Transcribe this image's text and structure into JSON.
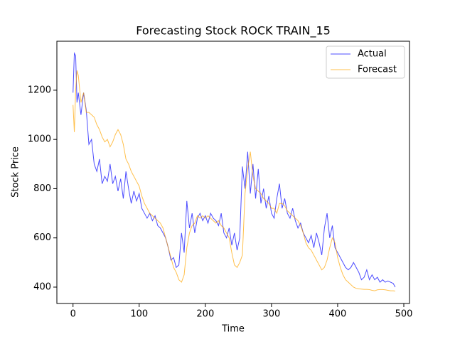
{
  "chart_data": {
    "type": "line",
    "title": "Forecasting Stock ROCK TRAIN_15",
    "x_label": "Time",
    "y_label": "Stock Price",
    "x": [
      0,
      2,
      4,
      6,
      8,
      12,
      16,
      20,
      24,
      28,
      32,
      36,
      40,
      44,
      48,
      52,
      56,
      60,
      64,
      68,
      72,
      76,
      80,
      84,
      88,
      92,
      96,
      100,
      104,
      108,
      112,
      116,
      120,
      124,
      128,
      132,
      136,
      140,
      144,
      148,
      152,
      156,
      160,
      164,
      168,
      172,
      176,
      180,
      184,
      188,
      192,
      196,
      200,
      204,
      208,
      212,
      216,
      220,
      224,
      228,
      232,
      236,
      240,
      244,
      248,
      252,
      256,
      260,
      264,
      268,
      272,
      276,
      280,
      284,
      288,
      292,
      296,
      300,
      304,
      308,
      312,
      316,
      320,
      324,
      328,
      332,
      336,
      340,
      344,
      348,
      352,
      356,
      360,
      364,
      368,
      372,
      376,
      380,
      384,
      388,
      392,
      396,
      400,
      404,
      408,
      412,
      416,
      420,
      424,
      428,
      432,
      436,
      440,
      444,
      448,
      452,
      456,
      460,
      464,
      468,
      472,
      476,
      480,
      484,
      487
    ],
    "series": [
      {
        "name": "Actual",
        "color": "#0000ff",
        "values": [
          1190,
          1350,
          1340,
          1150,
          1190,
          1100,
          1190,
          1120,
          980,
          1000,
          900,
          870,
          920,
          820,
          850,
          830,
          900,
          820,
          850,
          790,
          840,
          760,
          870,
          800,
          740,
          790,
          750,
          780,
          720,
          700,
          680,
          700,
          670,
          690,
          650,
          640,
          620,
          600,
          560,
          510,
          520,
          480,
          490,
          620,
          540,
          750,
          640,
          700,
          620,
          680,
          700,
          670,
          690,
          660,
          700,
          680,
          670,
          650,
          700,
          620,
          600,
          640,
          570,
          620,
          550,
          600,
          890,
          800,
          950,
          780,
          900,
          760,
          880,
          740,
          800,
          720,
          770,
          700,
          680,
          760,
          820,
          720,
          760,
          700,
          680,
          720,
          670,
          640,
          660,
          620,
          600,
          580,
          610,
          560,
          620,
          580,
          530,
          640,
          700,
          600,
          650,
          560,
          540,
          520,
          500,
          480,
          470,
          480,
          500,
          480,
          460,
          430,
          440,
          470,
          430,
          450,
          430,
          440,
          420,
          430,
          420,
          425,
          420,
          415,
          400
        ]
      },
      {
        "name": "Forecast",
        "color": "#ffa500",
        "values": [
          1140,
          1030,
          1200,
          1280,
          1260,
          1150,
          1190,
          1110,
          1110,
          1100,
          1090,
          1060,
          1040,
          1010,
          990,
          1000,
          970,
          990,
          1020,
          1040,
          1020,
          980,
          920,
          900,
          870,
          850,
          830,
          810,
          770,
          740,
          720,
          700,
          690,
          680,
          670,
          660,
          640,
          600,
          560,
          520,
          480,
          460,
          430,
          420,
          450,
          560,
          620,
          650,
          660,
          690,
          680,
          690,
          680,
          690,
          680,
          670,
          660,
          670,
          650,
          640,
          620,
          600,
          540,
          490,
          480,
          500,
          530,
          780,
          880,
          950,
          850,
          800,
          790,
          780,
          760,
          750,
          740,
          720,
          720,
          700,
          740,
          740,
          730,
          710,
          700,
          690,
          680,
          670,
          650,
          620,
          580,
          560,
          550,
          530,
          510,
          490,
          470,
          480,
          510,
          560,
          600,
          580,
          520,
          480,
          450,
          430,
          420,
          410,
          400,
          395,
          393,
          392,
          391,
          391,
          390,
          387,
          385,
          389,
          390,
          390,
          389,
          387,
          385,
          385,
          384
        ]
      }
    ],
    "xlim": [
      -24.4,
      508.6
    ],
    "ylim": [
      333.5,
      1399
    ],
    "xticks": [
      0,
      100,
      200,
      300,
      400,
      500
    ],
    "yticks": [
      400,
      600,
      800,
      1000,
      1200
    ],
    "legend": "upper right"
  }
}
